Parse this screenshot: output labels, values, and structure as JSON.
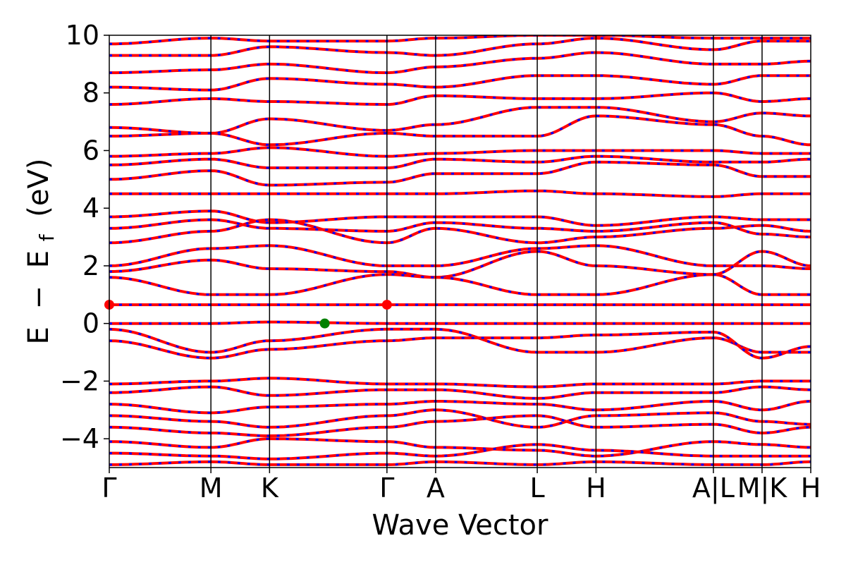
{
  "chart_data": {
    "type": "line",
    "title": "",
    "xlabel": "Wave Vector",
    "ylabel": "E − E_f (eV)",
    "ylabel_parts": {
      "a": "E",
      "minus": "−",
      "b": "E",
      "sub": "f",
      "unit": "(eV)"
    },
    "ylim": [
      -5,
      10
    ],
    "yticks": [
      -4,
      -2,
      0,
      2,
      4,
      6,
      8,
      10
    ],
    "ytick_labels": [
      "−4",
      "−2",
      "0",
      "2",
      "4",
      "6",
      "8",
      "10"
    ],
    "kpath": [
      {
        "label": "Γ",
        "x": 0.0
      },
      {
        "label": "M",
        "x": 1.0
      },
      {
        "label": "K",
        "x": 1.577
      },
      {
        "label": "Γ",
        "x": 2.732
      },
      {
        "label": "A",
        "x": 3.211
      },
      {
        "label": "L",
        "x": 4.211
      },
      {
        "label": "H",
        "x": 4.789
      },
      {
        "label": "A|L",
        "x": 5.944
      },
      {
        "label": "M|K",
        "x": 6.423
      },
      {
        "label": "H",
        "x": 6.902
      }
    ],
    "xlim": [
      0.0,
      6.902
    ],
    "grid": false,
    "legend": "none",
    "series": [
      {
        "color": "#ff0000",
        "style": "solid"
      },
      {
        "color": "#0000ff",
        "style": "dotted"
      }
    ],
    "bands": [
      {
        "y": [
          2.0,
          2.6,
          2.7,
          2.0,
          2.0,
          2.6,
          2.7,
          2.0,
          2.0,
          1.9
        ]
      },
      {
        "y": [
          1.8,
          2.2,
          1.9,
          1.8,
          1.6,
          2.5,
          2.0,
          1.7,
          2.5,
          2.0
        ]
      },
      {
        "y": [
          1.6,
          1.0,
          1.0,
          1.7,
          1.6,
          1.0,
          1.0,
          1.7,
          1.0,
          1.0
        ]
      },
      {
        "y": [
          0.65,
          0.65,
          0.65,
          0.65,
          0.65,
          0.65,
          0.65,
          0.65,
          0.65,
          0.65
        ]
      },
      {
        "y": [
          0.0,
          0.0,
          0.05,
          0.0,
          0.0,
          0.0,
          0.0,
          0.0,
          0.0,
          0.0
        ]
      },
      {
        "y": [
          -0.2,
          -1.0,
          -0.6,
          -0.2,
          -0.2,
          -1.0,
          -1.0,
          -0.5,
          -1.0,
          -1.0
        ]
      },
      {
        "y": [
          -0.6,
          -1.2,
          -0.9,
          -0.6,
          -0.5,
          -0.5,
          -0.4,
          -0.3,
          -1.2,
          -0.8
        ]
      },
      {
        "y": [
          -2.1,
          -2.0,
          -1.9,
          -2.1,
          -2.1,
          -2.2,
          -2.1,
          -2.1,
          -2.0,
          -2.0
        ]
      },
      {
        "y": [
          -2.4,
          -2.2,
          -2.5,
          -2.3,
          -2.3,
          -2.6,
          -2.4,
          -2.4,
          -2.2,
          -2.3
        ]
      },
      {
        "y": [
          -2.8,
          -3.1,
          -2.9,
          -2.8,
          -2.7,
          -2.8,
          -3.0,
          -2.7,
          -3.0,
          -2.7
        ]
      },
      {
        "y": [
          -3.2,
          -3.4,
          -3.6,
          -3.2,
          -3.0,
          -3.6,
          -3.2,
          -3.1,
          -3.4,
          -3.5
        ]
      },
      {
        "y": [
          -3.6,
          -3.8,
          -3.9,
          -3.6,
          -3.4,
          -3.2,
          -3.6,
          -3.5,
          -3.8,
          -3.6
        ]
      },
      {
        "y": [
          -4.1,
          -4.3,
          -4.0,
          -4.1,
          -4.3,
          -4.4,
          -4.6,
          -4.1,
          -4.2,
          -4.3
        ]
      },
      {
        "y": [
          -4.5,
          -4.6,
          -4.7,
          -4.5,
          -4.6,
          -4.2,
          -4.4,
          -4.6,
          -4.6,
          -4.6
        ]
      },
      {
        "y": [
          -4.9,
          -4.8,
          -4.9,
          -4.9,
          -4.8,
          -4.9,
          -4.8,
          -4.9,
          -4.9,
          -4.8
        ]
      },
      {
        "y": [
          2.8,
          3.2,
          3.6,
          2.8,
          3.3,
          2.8,
          3.0,
          3.3,
          3.4,
          3.2
        ]
      },
      {
        "y": [
          3.3,
          3.6,
          3.3,
          3.2,
          3.5,
          3.3,
          3.2,
          3.5,
          3.1,
          3.0
        ]
      },
      {
        "y": [
          3.7,
          3.9,
          3.5,
          3.7,
          3.7,
          3.7,
          3.4,
          3.7,
          3.6,
          3.6
        ]
      },
      {
        "y": [
          4.5,
          4.5,
          4.5,
          4.5,
          4.5,
          4.6,
          4.5,
          4.4,
          4.5,
          4.5
        ]
      },
      {
        "y": [
          5.0,
          5.3,
          4.8,
          4.9,
          5.2,
          5.2,
          5.6,
          5.5,
          5.1,
          5.1
        ]
      },
      {
        "y": [
          5.5,
          5.7,
          5.4,
          5.4,
          5.7,
          5.6,
          5.8,
          5.6,
          5.6,
          5.7
        ]
      },
      {
        "y": [
          5.8,
          5.9,
          6.1,
          5.8,
          5.9,
          6.0,
          6.0,
          6.0,
          5.9,
          5.9
        ]
      },
      {
        "y": [
          6.5,
          6.6,
          6.2,
          6.6,
          6.5,
          6.5,
          7.2,
          6.9,
          6.5,
          6.2
        ]
      },
      {
        "y": [
          6.8,
          6.6,
          7.1,
          6.7,
          6.9,
          7.5,
          7.5,
          7.0,
          7.3,
          7.2
        ]
      },
      {
        "y": [
          7.6,
          7.8,
          7.7,
          7.6,
          7.9,
          7.8,
          7.8,
          8.0,
          7.7,
          7.8
        ]
      },
      {
        "y": [
          8.2,
          8.1,
          8.5,
          8.3,
          8.2,
          8.6,
          8.6,
          8.3,
          8.6,
          8.6
        ]
      },
      {
        "y": [
          8.7,
          8.8,
          9.0,
          8.7,
          8.9,
          9.2,
          9.4,
          9.0,
          9.0,
          9.1
        ]
      },
      {
        "y": [
          9.3,
          9.3,
          9.6,
          9.4,
          9.3,
          9.7,
          9.9,
          9.5,
          9.8,
          9.8
        ]
      },
      {
        "y": [
          9.7,
          9.9,
          9.8,
          9.8,
          9.9,
          10.0,
          10.0,
          9.9,
          9.9,
          9.9
        ]
      }
    ],
    "markers": [
      {
        "x": 0.0,
        "y": 0.65,
        "color": "#ff0000"
      },
      {
        "x": 2.732,
        "y": 0.65,
        "color": "#ff0000"
      },
      {
        "x": 2.12,
        "y": 0.0,
        "color": "#008000"
      }
    ]
  }
}
